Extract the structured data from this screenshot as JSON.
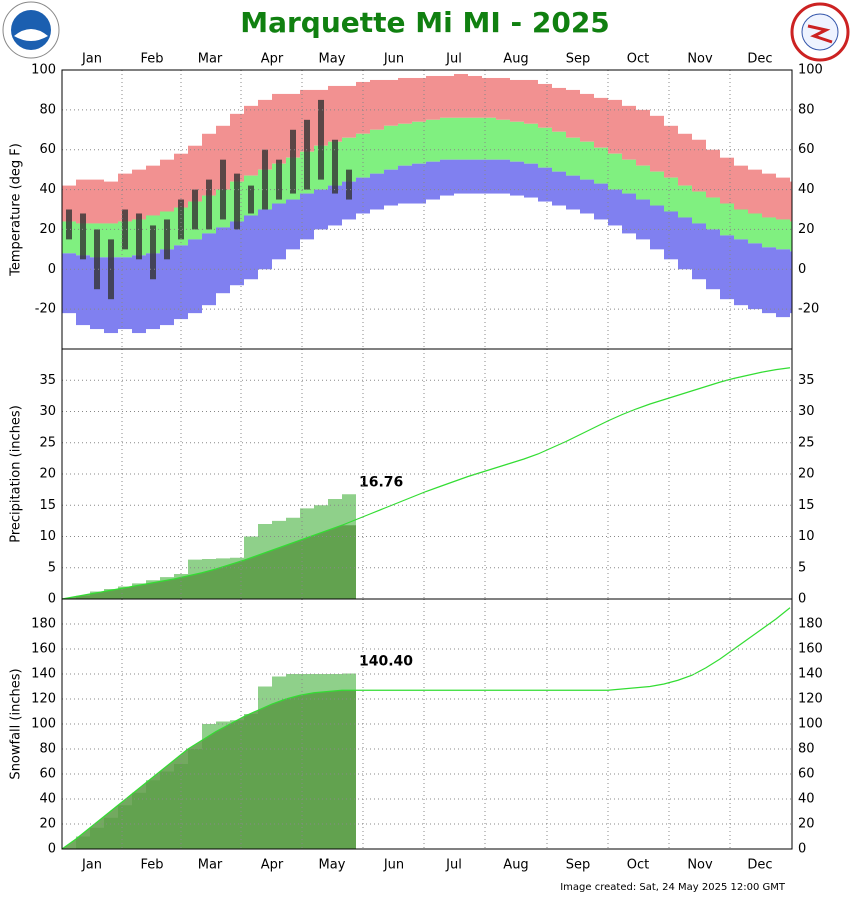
{
  "title": "Marquette Mi MI - 2025",
  "footer": "Image created: Sat, 24 May 2025 12:00 GMT",
  "chart_data": [
    {
      "type": "range",
      "ylabel": "Temperature (deg F)",
      "xlim": [
        1,
        366
      ],
      "xaxis_position": "top",
      "xticks": [
        {
          "value": 16,
          "label": "Jan"
        },
        {
          "value": 46,
          "label": "Feb"
        },
        {
          "value": 75,
          "label": "Mar"
        },
        {
          "value": 106,
          "label": "Apr"
        },
        {
          "value": 136,
          "label": "May"
        },
        {
          "value": 167,
          "label": "Jun"
        },
        {
          "value": 197,
          "label": "Jul"
        },
        {
          "value": 228,
          "label": "Aug"
        },
        {
          "value": 259,
          "label": "Sep"
        },
        {
          "value": 289,
          "label": "Oct"
        },
        {
          "value": 320,
          "label": "Nov"
        },
        {
          "value": 350,
          "label": "Dec"
        }
      ],
      "ylim": [
        -40,
        100
      ],
      "yticks": [
        -20,
        0,
        20,
        40,
        60,
        80,
        100
      ],
      "grid": true,
      "x": [
        1,
        8,
        15,
        22,
        29,
        36,
        43,
        50,
        57,
        64,
        71,
        78,
        85,
        92,
        99,
        106,
        113,
        120,
        127,
        134,
        141,
        148,
        155,
        162,
        169,
        176,
        183,
        190,
        197,
        204,
        211,
        218,
        225,
        232,
        239,
        246,
        253,
        260,
        267,
        274,
        281,
        288,
        295,
        302,
        309,
        316,
        323,
        330,
        337,
        344,
        351,
        358,
        365
      ],
      "series": [
        {
          "color": "#f29191",
          "values": [
            42,
            45,
            45,
            44,
            48,
            50,
            52,
            55,
            58,
            62,
            68,
            72,
            78,
            82,
            85,
            88,
            88,
            90,
            90,
            92,
            92,
            94,
            95,
            95,
            96,
            96,
            97,
            97,
            98,
            97,
            96,
            96,
            95,
            95,
            93,
            91,
            90,
            88,
            86,
            85,
            82,
            80,
            77,
            72,
            68,
            65,
            60,
            56,
            52,
            50,
            48,
            46,
            44
          ]
        },
        {
          "color": "#80f080",
          "values": [
            24,
            23,
            23,
            23,
            24,
            25,
            27,
            29,
            31,
            34,
            37,
            40,
            44,
            47,
            50,
            53,
            56,
            59,
            62,
            64,
            66,
            68,
            70,
            72,
            73,
            74,
            75,
            76,
            76,
            76,
            76,
            75,
            74,
            73,
            71,
            69,
            66,
            64,
            61,
            58,
            55,
            52,
            49,
            46,
            42,
            39,
            36,
            33,
            30,
            28,
            26,
            25,
            24
          ]
        },
        {
          "color": "#8080f0",
          "values": [
            8,
            7,
            6,
            6,
            6,
            7,
            8,
            10,
            12,
            15,
            18,
            21,
            24,
            27,
            30,
            33,
            35,
            38,
            40,
            42,
            44,
            46,
            48,
            50,
            52,
            53,
            54,
            55,
            55,
            55,
            55,
            55,
            54,
            53,
            51,
            49,
            47,
            45,
            43,
            40,
            38,
            35,
            32,
            29,
            26,
            23,
            20,
            17,
            15,
            13,
            11,
            10,
            9
          ]
        },
        {
          "values": [
            -22,
            -28,
            -30,
            -32,
            -30,
            -32,
            -30,
            -28,
            -25,
            -22,
            -18,
            -12,
            -8,
            -5,
            0,
            5,
            10,
            15,
            20,
            22,
            25,
            28,
            30,
            32,
            33,
            33,
            35,
            37,
            38,
            38,
            38,
            38,
            37,
            36,
            34,
            32,
            30,
            28,
            25,
            22,
            18,
            15,
            10,
            5,
            0,
            -5,
            -10,
            -15,
            -18,
            -20,
            -22,
            -24,
            -22
          ]
        }
      ],
      "observed": {
        "color": "#333333",
        "high": [
          30,
          28,
          20,
          15,
          30,
          28,
          22,
          25,
          35,
          40,
          45,
          55,
          48,
          42,
          60,
          55,
          70,
          75,
          85,
          65,
          50,
          null,
          null,
          null,
          null,
          null,
          null,
          null,
          null,
          null,
          null,
          null,
          null,
          null,
          null,
          null,
          null,
          null,
          null,
          null,
          null,
          null,
          null,
          null,
          null,
          null,
          null,
          null,
          null,
          null,
          null,
          null,
          null
        ],
        "low": [
          15,
          5,
          -10,
          -15,
          10,
          5,
          -5,
          5,
          15,
          20,
          20,
          25,
          20,
          28,
          30,
          35,
          38,
          40,
          45,
          38,
          35,
          null,
          null,
          null,
          null,
          null,
          null,
          null,
          null,
          null,
          null,
          null,
          null,
          null,
          null,
          null,
          null,
          null,
          null,
          null,
          null,
          null,
          null,
          null,
          null,
          null,
          null,
          null,
          null,
          null,
          null,
          null,
          null
        ]
      }
    },
    {
      "type": "cumulative",
      "ylabel": "Precipitation (inches)",
      "xlim": [
        1,
        366
      ],
      "ylim": [
        0,
        40
      ],
      "yticks": [
        0,
        5,
        10,
        15,
        20,
        25,
        30,
        35
      ],
      "grid": true,
      "x": [
        1,
        8,
        15,
        22,
        29,
        36,
        43,
        50,
        57,
        64,
        71,
        78,
        85,
        92,
        99,
        106,
        113,
        120,
        127,
        134,
        141,
        148,
        155,
        162,
        169,
        176,
        183,
        190,
        197,
        204,
        211,
        218,
        225,
        232,
        239,
        246,
        253,
        260,
        267,
        274,
        281,
        288,
        295,
        302,
        309,
        316,
        323,
        330,
        337,
        344,
        351,
        358,
        365
      ],
      "series": [
        {
          "color": "#33dd33",
          "fill": "#5b9a44",
          "values": [
            0,
            0.4,
            0.8,
            1.2,
            1.6,
            2.0,
            2.4,
            2.8,
            3.2,
            3.7,
            4.2,
            4.8,
            5.5,
            6.2,
            7.0,
            7.8,
            8.6,
            9.4,
            10.2,
            11.0,
            11.8,
            12.7,
            13.6,
            14.5,
            15.4,
            16.3,
            17.2,
            18.0,
            18.8,
            19.6,
            20.3,
            21.0,
            21.7,
            22.4,
            23.2,
            24.2,
            25.2,
            26.3,
            27.4,
            28.5,
            29.5,
            30.4,
            31.2,
            31.9,
            32.6,
            33.3,
            34.0,
            34.7,
            35.3,
            35.8,
            36.3,
            36.7,
            37.0
          ]
        },
        {
          "color": "#8fd08a",
          "values": [
            0,
            0.5,
            1.2,
            1.6,
            2.0,
            2.5,
            3.0,
            3.5,
            4.0,
            6.3,
            6.4,
            6.5,
            6.6,
            10.0,
            12.0,
            12.5,
            13.0,
            14.5,
            15.0,
            16.0,
            16.76,
            null,
            null,
            null,
            null,
            null,
            null,
            null,
            null,
            null,
            null,
            null,
            null,
            null,
            null,
            null,
            null,
            null,
            null,
            null,
            null,
            null,
            null,
            null,
            null,
            null,
            null,
            null,
            null,
            null,
            null,
            null,
            null
          ]
        }
      ]
    },
    {
      "type": "cumulative",
      "ylabel": "Snowfall (inches)",
      "xlim": [
        1,
        366
      ],
      "xaxis_position": "bottom",
      "xticks": [
        {
          "value": 16,
          "label": "Jan"
        },
        {
          "value": 46,
          "label": "Feb"
        },
        {
          "value": 75,
          "label": "Mar"
        },
        {
          "value": 106,
          "label": "Apr"
        },
        {
          "value": 136,
          "label": "May"
        },
        {
          "value": 167,
          "label": "Jun"
        },
        {
          "value": 197,
          "label": "Jul"
        },
        {
          "value": 228,
          "label": "Aug"
        },
        {
          "value": 259,
          "label": "Sep"
        },
        {
          "value": 289,
          "label": "Oct"
        },
        {
          "value": 320,
          "label": "Nov"
        },
        {
          "value": 350,
          "label": "Dec"
        }
      ],
      "ylim": [
        0,
        200
      ],
      "yticks": [
        0,
        20,
        40,
        60,
        80,
        100,
        120,
        140,
        160,
        180
      ],
      "grid": true,
      "x": [
        1,
        8,
        15,
        22,
        29,
        36,
        43,
        50,
        57,
        64,
        71,
        78,
        85,
        92,
        99,
        106,
        113,
        120,
        127,
        134,
        141,
        148,
        155,
        162,
        169,
        176,
        183,
        190,
        197,
        204,
        211,
        218,
        225,
        232,
        239,
        246,
        253,
        260,
        267,
        274,
        281,
        288,
        295,
        302,
        309,
        316,
        323,
        330,
        337,
        344,
        351,
        358,
        365
      ],
      "series": [
        {
          "color": "#33dd33",
          "fill": "#5b9a44",
          "values": [
            0,
            8,
            17,
            26,
            35,
            44,
            53,
            62,
            71,
            80,
            87,
            94,
            100,
            106,
            111,
            116,
            120,
            123,
            125,
            126,
            127,
            127,
            127,
            127,
            127,
            127,
            127,
            127,
            127,
            127,
            127,
            127,
            127,
            127,
            127,
            127,
            127,
            127,
            127,
            127,
            128,
            129,
            130,
            132,
            135,
            139,
            145,
            152,
            160,
            168,
            176,
            184,
            193
          ]
        },
        {
          "color": "#8fd08a",
          "values": [
            0,
            10,
            17,
            25,
            35,
            45,
            55,
            62,
            68,
            80,
            100,
            102,
            103,
            108,
            130,
            138,
            140,
            140,
            140,
            140,
            140.4,
            null,
            null,
            null,
            null,
            null,
            null,
            null,
            null,
            null,
            null,
            null,
            null,
            null,
            null,
            null,
            null,
            null,
            null,
            null,
            null,
            null,
            null,
            null,
            null,
            null,
            null,
            null,
            null,
            null,
            null,
            null,
            null
          ],
          "value_labels": [
            null,
            null,
            null,
            null,
            null,
            null,
            null,
            null,
            null,
            null,
            null,
            null,
            null,
            null,
            null,
            null,
            null,
            null,
            null,
            null,
            "140.40",
            null,
            null,
            null,
            null,
            null,
            null,
            null,
            null,
            null,
            null,
            null,
            null,
            null,
            null,
            null,
            null,
            null,
            null,
            null,
            null,
            null,
            null,
            null,
            null,
            null,
            null,
            null,
            null,
            null,
            null,
            null,
            null
          ]
        }
      ]
    }
  ]
}
